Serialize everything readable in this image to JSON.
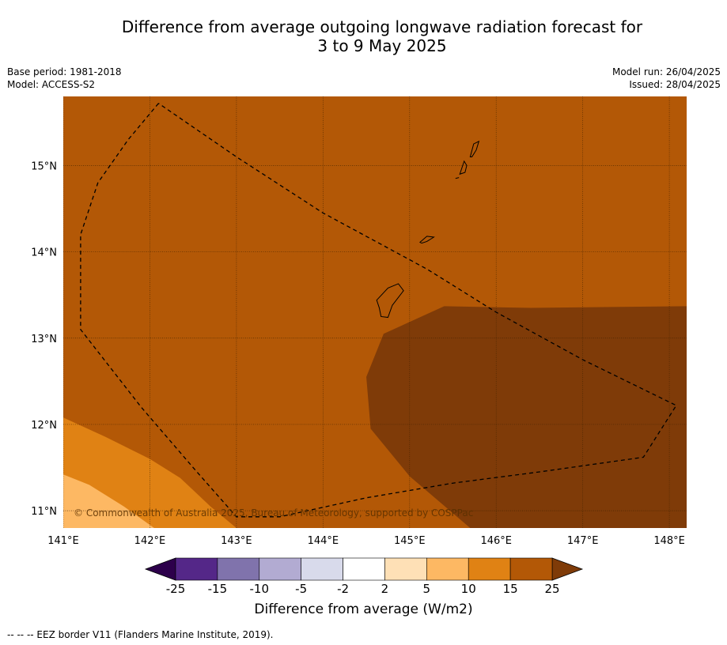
{
  "title_line1": "Difference from average outgoing longwave radiation forecast for",
  "title_line2": "3 to 9 May 2025",
  "meta_left": [
    "Base period: 1981-2018",
    "Model: ACCESS-S2"
  ],
  "meta_right": [
    "Model run: 26/04/2025",
    "Issued: 28/04/2025"
  ],
  "map": {
    "lon_range": [
      141.0,
      148.2
    ],
    "lat_range": [
      10.8,
      15.8
    ],
    "lon_ticks": [
      141,
      142,
      143,
      144,
      145,
      146,
      147,
      148
    ],
    "lon_tick_labels": [
      "141°E",
      "142°E",
      "143°E",
      "144°E",
      "145°E",
      "146°E",
      "147°E",
      "148°E"
    ],
    "lat_ticks": [
      11,
      12,
      13,
      14,
      15
    ],
    "lat_tick_labels": [
      "11°N",
      "12°N",
      "13°N",
      "14°N",
      "15°N"
    ],
    "copyright": "© Commonwealth of Australia 2025, Bureau of Meteorology, supported by COSPPac",
    "eez_border": [
      [
        142.1,
        15.72
      ],
      [
        141.75,
        15.3
      ],
      [
        141.4,
        14.8
      ],
      [
        141.2,
        14.2
      ],
      [
        141.2,
        13.1
      ],
      [
        141.9,
        12.2
      ],
      [
        142.5,
        11.5
      ],
      [
        143.0,
        10.93
      ],
      [
        143.5,
        10.93
      ],
      [
        144.5,
        11.15
      ],
      [
        145.5,
        11.32
      ],
      [
        146.5,
        11.45
      ],
      [
        147.7,
        11.62
      ],
      [
        148.08,
        12.22
      ],
      [
        147.0,
        12.75
      ],
      [
        146.0,
        13.3
      ],
      [
        145.2,
        13.8
      ],
      [
        144.0,
        14.45
      ],
      [
        143.0,
        15.1
      ],
      [
        142.1,
        15.72
      ]
    ],
    "islands": [
      {
        "name": "Guam",
        "points": [
          [
            144.62,
            13.44
          ],
          [
            144.75,
            13.58
          ],
          [
            144.87,
            13.63
          ],
          [
            144.93,
            13.55
          ],
          [
            144.8,
            13.38
          ],
          [
            144.75,
            13.24
          ],
          [
            144.67,
            13.25
          ],
          [
            144.65,
            13.35
          ]
        ]
      },
      {
        "name": "Rota",
        "points": [
          [
            145.12,
            14.11
          ],
          [
            145.2,
            14.18
          ],
          [
            145.28,
            14.17
          ],
          [
            145.2,
            14.12
          ],
          [
            145.14,
            14.1
          ]
        ]
      },
      {
        "name": "Tinian",
        "points": [
          [
            145.58,
            14.9
          ],
          [
            145.63,
            15.05
          ],
          [
            145.66,
            15.0
          ],
          [
            145.64,
            14.92
          ]
        ]
      },
      {
        "name": "Saipan",
        "points": [
          [
            145.7,
            15.1
          ],
          [
            145.74,
            15.25
          ],
          [
            145.8,
            15.28
          ],
          [
            145.77,
            15.18
          ],
          [
            145.72,
            15.1
          ]
        ]
      },
      {
        "name": "Aguijan",
        "points": [
          [
            145.53,
            14.85
          ],
          [
            145.57,
            14.86
          ]
        ]
      }
    ]
  },
  "colorbar": {
    "label": "Difference from average (W/m2)",
    "tick_labels": [
      "-25",
      "-15",
      "-10",
      "-5",
      "-2",
      "2",
      "5",
      "10",
      "15",
      "25"
    ],
    "colors": [
      "#542788",
      "#8073ac",
      "#b2abd2",
      "#d8daeb",
      "#ffffff",
      "#fee0b6",
      "#fdb863",
      "#e08214",
      "#b35806"
    ],
    "extend_low_color": "#2d004b",
    "extend_high_color": "#7f3b08"
  },
  "contours": {
    "bins": [
      {
        "range": "15 to 25",
        "color": "#b35806",
        "region": "background"
      },
      {
        "range": "> 25",
        "color": "#7f3b08",
        "region": "southeast"
      },
      {
        "range": "10 to 15",
        "color": "#e08214",
        "region": "southwest"
      },
      {
        "range": "5 to 10",
        "color": "#fdb863",
        "region": "far southwest corner"
      }
    ]
  },
  "footnote": "--  --  -- EEZ border V11 (Flanders Marine Institute, 2019)."
}
